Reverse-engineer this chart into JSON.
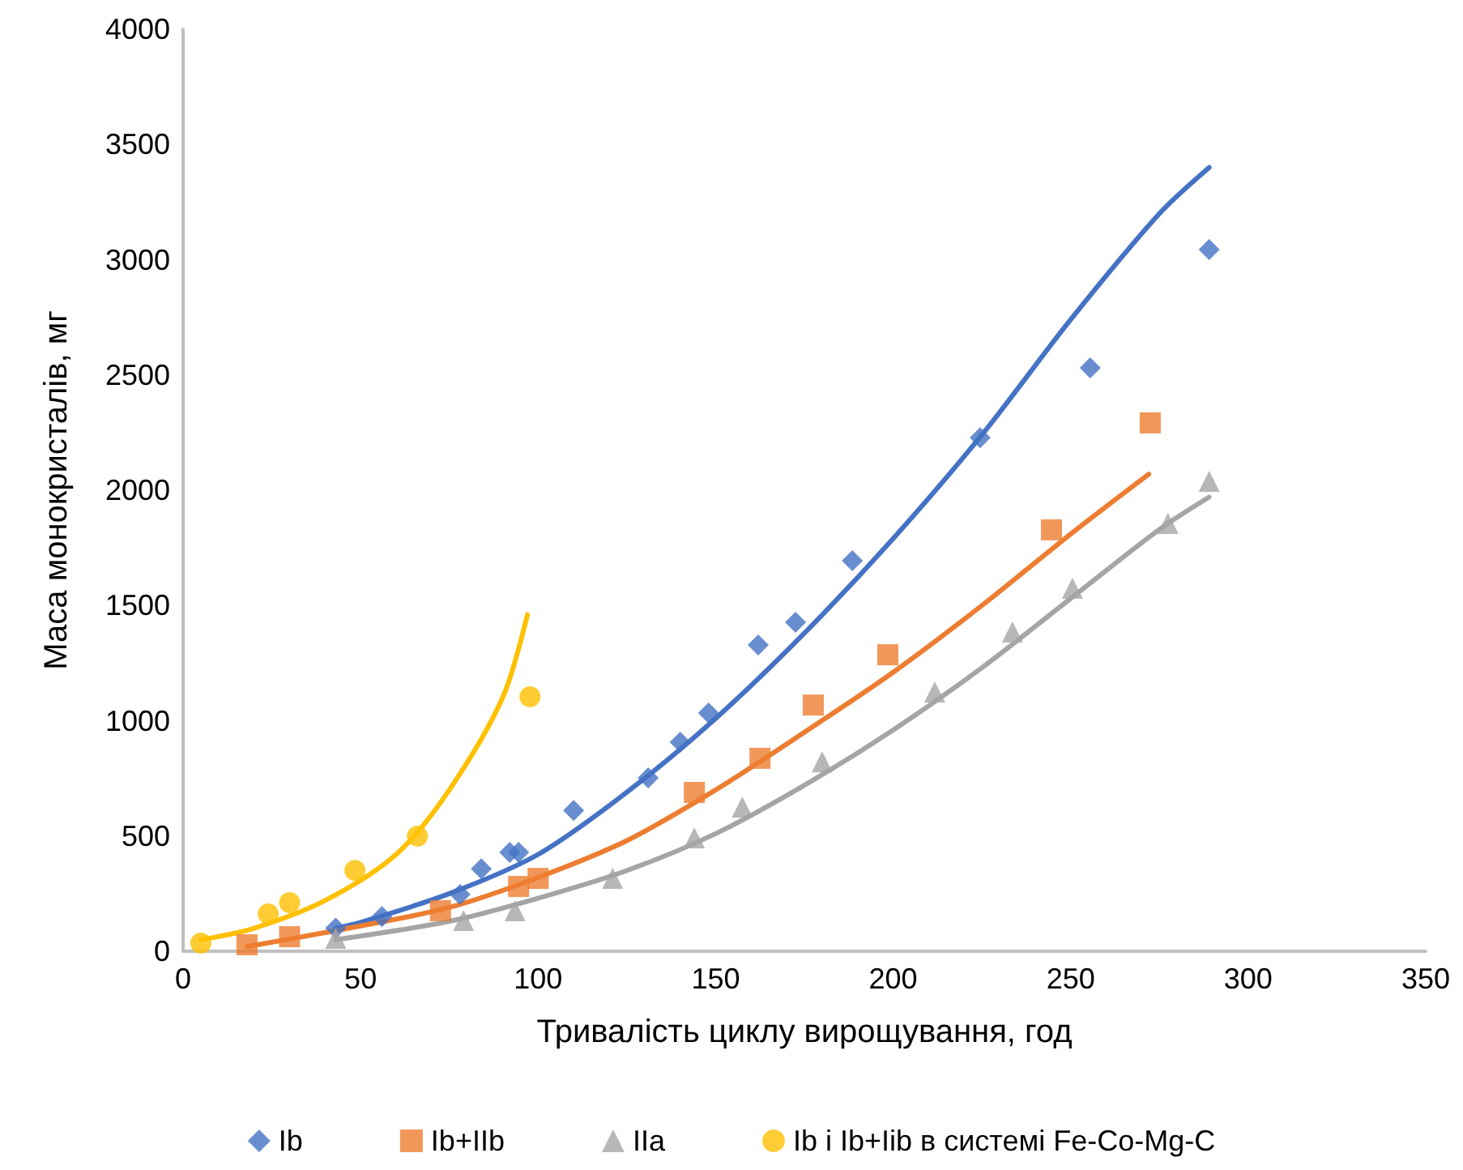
{
  "chart_data": {
    "type": "scatter",
    "xlabel": "Тривалість циклу вирощування, год",
    "ylabel": "Маса монокристалів, мг",
    "xlim": [
      0,
      350
    ],
    "xticks": [
      0,
      50,
      100,
      150,
      200,
      250,
      300,
      350
    ],
    "ylim": [
      0,
      4000
    ],
    "yticks": [
      0,
      500,
      1000,
      1500,
      2000,
      2500,
      3000,
      3500,
      4000
    ],
    "grid": false,
    "legend": "bottom",
    "series": [
      {
        "name": "Ib",
        "color": "#4472c4",
        "marker": "diamond",
        "x": [
          43,
          56,
          78,
          84,
          92,
          94.5,
          110,
          131,
          140,
          148,
          162,
          172.5,
          188.5,
          224.5,
          255.5,
          289
        ],
        "values": [
          100,
          150,
          246,
          358,
          429,
          429,
          611,
          752,
          907,
          1033,
          1329,
          1427,
          1694,
          2228,
          2531,
          3044
        ]
      },
      {
        "name": "Ib+IIb",
        "color": "#ed7d31",
        "marker": "square",
        "x": [
          18,
          30,
          72.5,
          94.5,
          100,
          144,
          162.5,
          177.5,
          198.5,
          244.6,
          272.4
        ],
        "values": [
          28,
          63,
          176,
          281,
          316,
          689,
          837,
          1068,
          1286,
          1828,
          2292
        ]
      },
      {
        "name": "IIa",
        "color": "#a5a5a5",
        "marker": "triangle",
        "x": [
          43,
          79,
          93.5,
          121,
          144,
          157.5,
          180,
          211.7,
          233.6,
          250.5,
          277.4,
          289
        ],
        "values": [
          56,
          134,
          176,
          316,
          492,
          626,
          822,
          1125,
          1385,
          1575,
          1856,
          2039
        ]
      },
      {
        "name": "Ib і Ib+Iib в системі Fe-Co-Mg-C",
        "color": "#ffc000",
        "marker": "circle",
        "x": [
          5,
          24,
          30,
          48.4,
          66,
          97.7
        ],
        "values": [
          35,
          162,
          211,
          351,
          499,
          1104
        ]
      },
      {
        "type": "line",
        "color": "#4472c4",
        "marker": "none",
        "line_style": "solid",
        "x": [
          43,
          50,
          75,
          100,
          125,
          150,
          175,
          200,
          225,
          250,
          275,
          289
        ],
        "values": [
          100,
          125,
          250,
          420,
          690,
          1010,
          1380,
          1790,
          2240,
          2740,
          3200,
          3400
        ]
      },
      {
        "type": "line",
        "color": "#ed7d31",
        "marker": "none",
        "line_style": "solid",
        "x": [
          18,
          50,
          75,
          100,
          125,
          150,
          175,
          200,
          225,
          250,
          272
        ],
        "values": [
          20,
          110,
          190,
          320,
          480,
          700,
          950,
          1210,
          1500,
          1810,
          2070
        ]
      },
      {
        "type": "line",
        "color": "#a5a5a5",
        "marker": "none",
        "line_style": "solid",
        "x": [
          43,
          75,
          100,
          125,
          150,
          175,
          200,
          225,
          250,
          275,
          289
        ],
        "values": [
          50,
          130,
          230,
          350,
          510,
          720,
          960,
          1230,
          1530,
          1830,
          1970
        ]
      },
      {
        "type": "line",
        "color": "#ffc000",
        "marker": "none",
        "line_style": "solid",
        "x": [
          5,
          20,
          40,
          60,
          75,
          90,
          97
        ],
        "values": [
          50,
          100,
          220,
          420,
          700,
          1100,
          1460
        ]
      }
    ]
  }
}
